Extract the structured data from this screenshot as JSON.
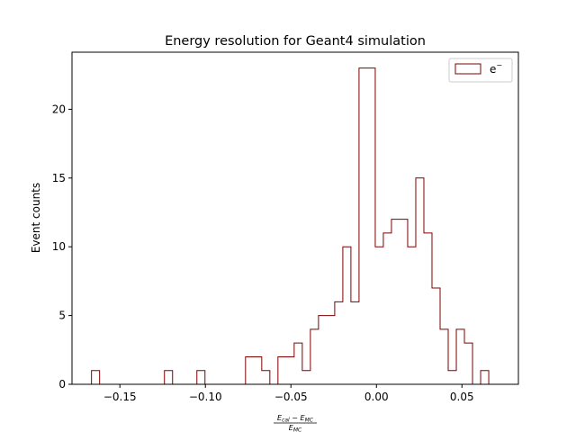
{
  "chart_data": {
    "type": "histogram",
    "title": "Energy resolution for Geant4 simulation",
    "ylabel": "Event counts",
    "xlabel_numerator": "E",
    "xlabel_num_sub1": "cal",
    "xlabel_num_sub2": "MC",
    "xlabel_denominator": "E",
    "xlabel_den_sub": "MC",
    "xlabel_minus": "−",
    "xlim": [
      -0.178,
      0.083
    ],
    "ylim": [
      0,
      24.15
    ],
    "xticks": [
      -0.15,
      -0.1,
      -0.05,
      0.0,
      0.05
    ],
    "xtick_labels": [
      "−0.15",
      "−0.10",
      "−0.05",
      "0.00",
      "0.05"
    ],
    "yticks": [
      0,
      5,
      10,
      15,
      20
    ],
    "ytick_labels": [
      "0",
      "5",
      "10",
      "15",
      "20"
    ],
    "bin_start": -0.1666,
    "bin_width": 0.00474,
    "counts": [
      1,
      0,
      0,
      0,
      0,
      0,
      0,
      0,
      0,
      1,
      0,
      0,
      0,
      1,
      0,
      0,
      0,
      0,
      0,
      2,
      2,
      1,
      0,
      2,
      2,
      3,
      1,
      4,
      5,
      5,
      6,
      10,
      6,
      23,
      23,
      10,
      11,
      12,
      12,
      10,
      15,
      11,
      7,
      4,
      1,
      4,
      3,
      0,
      1
    ],
    "legend": {
      "label": "e",
      "label_sup": "−",
      "position": "upper right"
    },
    "series_color": "#800000"
  }
}
